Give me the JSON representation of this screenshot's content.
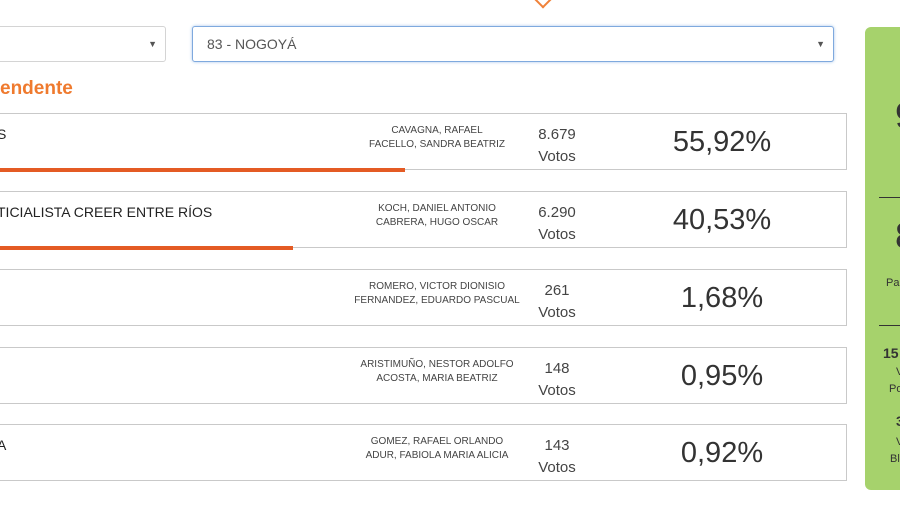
{
  "filters": {
    "left_value": "",
    "right_value": "83 - NOGOYÁ"
  },
  "section_title": "endente",
  "results": [
    {
      "party": "S",
      "candidates": [
        "CAVAGNA, RAFAEL",
        "FACELLO, SANDRA BEATRIZ"
      ],
      "votes": "8.679",
      "votes_label": "Votos",
      "percent": "55,92%",
      "bar_fraction": 0.5592
    },
    {
      "party": "TICIALISTA CREER ENTRE RÍOS",
      "candidates": [
        "KOCH, DANIEL ANTONIO",
        "CABRERA, HUGO OSCAR"
      ],
      "votes": "6.290",
      "votes_label": "Votos",
      "percent": "40,53%",
      "bar_fraction": 0.4053
    },
    {
      "party": "",
      "candidates": [
        "ROMERO, VICTOR DIONISIO",
        "FERNANDEZ, EDUARDO PASCUAL"
      ],
      "votes": "261",
      "votes_label": "Votos",
      "percent": "1,68%",
      "bar_fraction": 0
    },
    {
      "party": "",
      "candidates": [
        "ARISTIMUÑO, NESTOR ADOLFO",
        "ACOSTA, MARIA BEATRIZ"
      ],
      "votes": "148",
      "votes_label": "Votos",
      "percent": "0,95%",
      "bar_fraction": 0
    },
    {
      "party": "A",
      "candidates": [
        "GOMEZ, RAFAEL ORLANDO",
        "ADUR, FABIOLA MARIA ALICIA"
      ],
      "votes": "143",
      "votes_label": "Votos",
      "percent": "0,92%",
      "bar_fraction": 0
    }
  ],
  "side_panel": {
    "big_1": "9",
    "big_2": "8",
    "label_1": "Pa",
    "num_1": "15",
    "label_2a": "V",
    "label_2b": "Po",
    "num_2": "3",
    "label_3a": "V",
    "label_3b": "Bl"
  },
  "colors": {
    "accent": "#ef7a2e",
    "bar": "#e45b24",
    "side_panel": "#a6d26c"
  }
}
